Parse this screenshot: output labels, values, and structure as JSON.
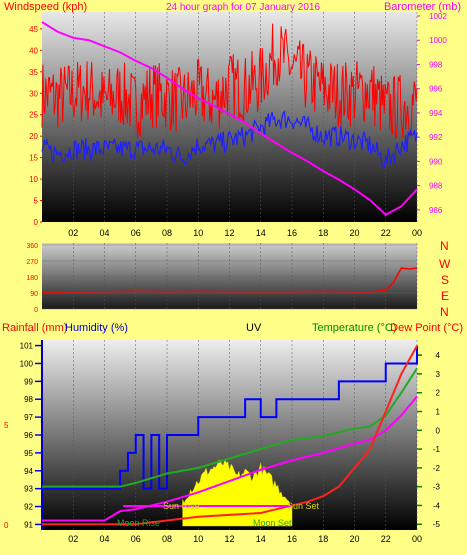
{
  "colors": {
    "background": "#ffff88",
    "wind_axis": "#ff0000",
    "baro_axis": "#ff00ff",
    "gust": "#ff0000",
    "avg_wind": "#2020ff",
    "pressure": "#ff00ff",
    "direction": "#ff0000",
    "humidity": "#0000ff",
    "temperature": "#22aa22",
    "dewpoint": "#ff2020",
    "uv": "#ffff00",
    "sun_line": "#ff00ff",
    "humidity_tick": "#0000ff",
    "temp_tick": "#008800"
  },
  "top_panel": {
    "left_title": "Windspeed (kph)",
    "center_title": "24 hour graph for 07 January 2016",
    "right_title": "Barometer (mb)"
  },
  "direction_panel": {
    "letters": [
      "N",
      "W",
      "S",
      "E",
      "N"
    ]
  },
  "bottom_panel": {
    "rainfall_title": "Rainfall (mm)",
    "humidity_title": "Humidity (%)",
    "uv_title": "UV",
    "temperature_title": "Temperature (°C)",
    "dewpoint_title": "Dew Point (°C)",
    "moon_rise": "Moon Rise",
    "sun_rise": "Sun Rise",
    "sun_set": "Sun Set",
    "moon_set": "Moon Set"
  },
  "chart_data": [
    {
      "type": "line",
      "name": "wind-and-pressure",
      "x_ticks": [
        "02",
        "04",
        "06",
        "08",
        "10",
        "12",
        "14",
        "16",
        "18",
        "20",
        "22",
        "00"
      ],
      "xlim": [
        0,
        24
      ],
      "wind_ylim": [
        0,
        48
      ],
      "wind_yticks": [
        0,
        5,
        10,
        15,
        20,
        25,
        30,
        35,
        40,
        45
      ],
      "baro_ylim": [
        985,
        1002
      ],
      "baro_yticks": [
        986,
        988,
        990,
        992,
        994,
        996,
        998,
        1000,
        1002
      ],
      "series": [
        {
          "role": "gust",
          "x": [
            0,
            1,
            2,
            3,
            4,
            5,
            6,
            7,
            8,
            9,
            10,
            11,
            12,
            13,
            14,
            15,
            16,
            17,
            18,
            19,
            20,
            21,
            22,
            23,
            24
          ],
          "y": [
            30,
            29,
            30,
            31,
            28,
            30,
            27,
            30,
            29,
            28,
            30,
            28,
            32,
            31,
            33,
            40,
            36,
            33,
            31,
            30,
            30,
            31,
            26,
            27,
            28
          ]
        },
        {
          "role": "avg_wind",
          "x": [
            0,
            1,
            2,
            3,
            4,
            5,
            6,
            7,
            8,
            9,
            10,
            11,
            12,
            13,
            14,
            15,
            16,
            17,
            18,
            19,
            20,
            21,
            22,
            23,
            24
          ],
          "y": [
            17,
            16,
            17,
            17,
            17,
            17,
            17,
            17,
            17,
            15,
            18,
            18,
            19,
            20,
            22,
            24,
            24,
            22,
            20,
            20,
            19,
            18,
            14,
            18,
            20
          ]
        },
        {
          "role": "pressure",
          "x": [
            0,
            1,
            2,
            3,
            4,
            5,
            6,
            7,
            8,
            9,
            10,
            11,
            12,
            13,
            14,
            15,
            16,
            17,
            18,
            19,
            20,
            21,
            22,
            23,
            24
          ],
          "y": [
            1001.5,
            1000.7,
            1000.2,
            1000.0,
            999.5,
            999.0,
            998.3,
            997.7,
            996.9,
            996.0,
            995.2,
            994.6,
            993.9,
            993.2,
            992.3,
            991.5,
            990.7,
            990.0,
            989.2,
            988.5,
            987.7,
            986.8,
            985.6,
            986.3,
            987.7
          ]
        }
      ]
    },
    {
      "type": "line",
      "name": "wind-direction",
      "x_ticks": [
        "02",
        "04",
        "06",
        "08",
        "10",
        "12",
        "14",
        "16",
        "18",
        "20",
        "22",
        "00"
      ],
      "xlim": [
        0,
        24
      ],
      "ylim": [
        0,
        360
      ],
      "yticks": [
        0,
        90,
        180,
        270,
        360
      ],
      "series": [
        {
          "role": "direction",
          "x": [
            0,
            2,
            4,
            6,
            8,
            10,
            12,
            14,
            16,
            18,
            20,
            21,
            22,
            22.5,
            23,
            23.5,
            24
          ],
          "y": [
            95,
            96,
            97,
            100,
            98,
            99,
            98,
            97,
            98,
            99,
            97,
            96,
            105,
            150,
            230,
            225,
            230
          ]
        }
      ]
    },
    {
      "type": "line",
      "name": "rain-humidity-uv-temperature",
      "x_ticks": [
        "02",
        "04",
        "06",
        "08",
        "10",
        "12",
        "14",
        "16",
        "18",
        "20",
        "22",
        "00"
      ],
      "xlim": [
        0,
        24
      ],
      "humidity_ylim": [
        90.8,
        101.2
      ],
      "humidity_yticks": [
        91,
        92,
        93,
        94,
        95,
        96,
        97,
        98,
        99,
        100,
        101
      ],
      "temp_ylim": [
        -5.2,
        4.7
      ],
      "temp_yticks": [
        -5,
        -4,
        -3,
        -2,
        -1,
        0,
        1,
        2,
        3,
        4
      ],
      "rain_yticks": [
        0,
        5
      ],
      "series": [
        {
          "role": "humidity",
          "x": [
            0,
            1,
            2,
            3,
            4,
            4.5,
            5,
            5.5,
            6,
            6.5,
            7,
            7.5,
            8,
            9,
            10,
            11,
            12,
            13,
            14,
            15,
            16,
            17,
            18,
            19,
            20,
            21,
            22,
            23,
            24
          ],
          "y": [
            93,
            93,
            93,
            93,
            93,
            93,
            94,
            95,
            96,
            93,
            96,
            93,
            96,
            96,
            97,
            97,
            97,
            98,
            97,
            98,
            98,
            98,
            98,
            99,
            99,
            99,
            100,
            100,
            101
          ]
        },
        {
          "role": "temperature",
          "x": [
            0,
            2,
            4,
            5,
            6,
            8,
            10,
            12,
            14,
            16,
            18,
            20,
            21,
            22,
            23,
            24
          ],
          "y": [
            -3.0,
            -3.0,
            -3.0,
            -3.0,
            -2.8,
            -2.3,
            -2.0,
            -1.5,
            -1.0,
            -0.5,
            -0.3,
            0.1,
            0.2,
            0.8,
            2.0,
            3.3
          ]
        },
        {
          "role": "dewpoint",
          "x": [
            0,
            2,
            4,
            5,
            6,
            8,
            10,
            12,
            14,
            16,
            18,
            20,
            21,
            22,
            23,
            24
          ],
          "y": [
            -4.8,
            -4.8,
            -4.8,
            -4.3,
            -4.2,
            -3.8,
            -3.3,
            -2.7,
            -2.1,
            -1.6,
            -1.2,
            -0.7,
            -0.5,
            0,
            0.8,
            1.8
          ]
        },
        {
          "role": "temperature_red",
          "x": [
            0,
            2,
            4,
            6,
            8,
            10,
            12,
            14,
            15,
            16,
            17,
            18,
            19,
            20,
            21,
            22,
            23,
            24
          ],
          "y": [
            -5.0,
            -5.0,
            -5.0,
            -5.0,
            -4.8,
            -4.6,
            -4.5,
            -4.4,
            -4.2,
            -4.0,
            -3.8,
            -3.5,
            -3.0,
            -2.0,
            -1.0,
            1.0,
            3.0,
            4.5
          ]
        },
        {
          "role": "uv",
          "x": [
            9,
            9.5,
            10,
            10.5,
            11,
            11.5,
            12,
            12.5,
            13,
            13.5,
            14,
            14.5,
            15,
            15.5,
            16
          ],
          "y": [
            0.6,
            0.8,
            1.0,
            1.2,
            1.3,
            1.4,
            1.3,
            1.1,
            1.2,
            1.1,
            1.3,
            1.1,
            0.9,
            0.7,
            0.5
          ]
        }
      ]
    }
  ]
}
